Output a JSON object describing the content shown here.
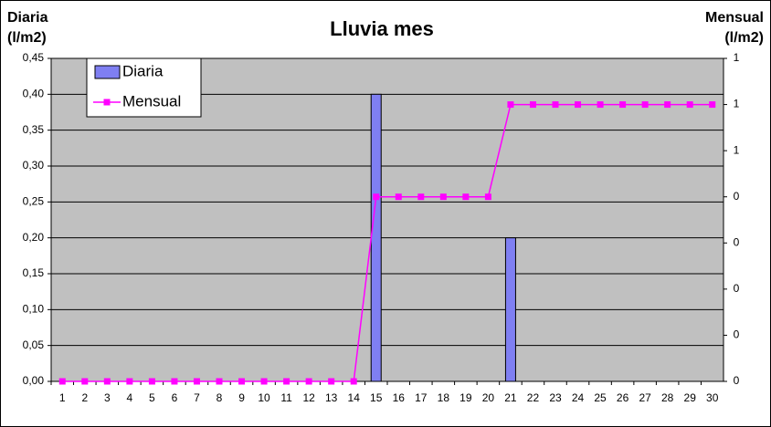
{
  "chart_data": {
    "type": "bar",
    "title": "Lluvia mes",
    "ylabel": [
      "Diaria",
      "(l/m2)"
    ],
    "y2label": [
      "Mensual",
      "(l/m2)"
    ],
    "categories": [
      "1",
      "2",
      "3",
      "4",
      "5",
      "6",
      "7",
      "8",
      "9",
      "10",
      "11",
      "12",
      "13",
      "14",
      "15",
      "16",
      "17",
      "18",
      "19",
      "20",
      "21",
      "22",
      "23",
      "24",
      "25",
      "26",
      "27",
      "28",
      "29",
      "30"
    ],
    "series": [
      {
        "name": "Diaria",
        "type": "bar",
        "axis": "y",
        "color": "#7f7ff2",
        "values": [
          0,
          0,
          0,
          0,
          0,
          0,
          0,
          0,
          0,
          0,
          0,
          0,
          0,
          0,
          0.4,
          0,
          0,
          0,
          0,
          0,
          0.2,
          0,
          0,
          0,
          0,
          0,
          0,
          0,
          0,
          0
        ]
      },
      {
        "name": "Mensual",
        "type": "line",
        "axis": "y2",
        "color": "#ff00ff",
        "values": [
          0,
          0,
          0,
          0,
          0,
          0,
          0,
          0,
          0,
          0,
          0,
          0,
          0,
          0,
          0.4,
          0.4,
          0.4,
          0.4,
          0.4,
          0.4,
          0.6,
          0.6,
          0.6,
          0.6,
          0.6,
          0.6,
          0.6,
          0.6,
          0.6,
          0.6
        ]
      }
    ],
    "ylim": [
      0,
      0.45
    ],
    "yticks": [
      {
        "value": 0,
        "label": "0,00"
      },
      {
        "value": 0.05,
        "label": "0,05"
      },
      {
        "value": 0.1,
        "label": "0,10"
      },
      {
        "value": 0.15,
        "label": "0,15"
      },
      {
        "value": 0.2,
        "label": "0,20"
      },
      {
        "value": 0.25,
        "label": "0,25"
      },
      {
        "value": 0.3,
        "label": "0,30"
      },
      {
        "value": 0.35,
        "label": "0,35"
      },
      {
        "value": 0.4,
        "label": "0,40"
      },
      {
        "value": 0.45,
        "label": "0,45"
      }
    ],
    "y2lim": [
      0,
      0.7
    ],
    "y2ticks": [
      0,
      {
        "value": 0.1,
        "label": "0"
      },
      {
        "value": 0.2,
        "label": "0"
      },
      {
        "value": 0.3,
        "label": "0"
      },
      {
        "value": 0.4,
        "label": "0"
      },
      {
        "value": 0.5,
        "label": "1"
      },
      {
        "value": 0.6,
        "label": "1"
      },
      {
        "value": 0.7,
        "label": "1"
      }
    ],
    "grid": true,
    "legend": "top-left"
  }
}
